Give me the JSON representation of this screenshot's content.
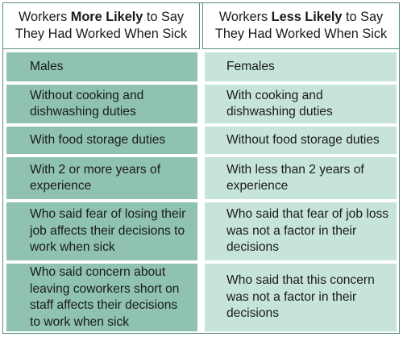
{
  "headers": {
    "left": {
      "before": "Workers ",
      "emphasis": "More Likely",
      "after": " to Say",
      "line2": "They Had Worked When Sick"
    },
    "right": {
      "before": "Workers ",
      "emphasis": "Less Likely",
      "after": " to Say",
      "line2": "They Had Worked When Sick"
    }
  },
  "rows": [
    {
      "left": "Males",
      "right": "Females"
    },
    {
      "left": "Without cooking and dishwashing duties",
      "right": "With cooking and dishwashing duties"
    },
    {
      "left": "With food storage duties",
      "right": "Without food storage duties"
    },
    {
      "left": "With 2 or more years of experience",
      "right": "With less than 2 years of experience"
    },
    {
      "left": "Who said fear of losing their job affects their decisions to work when sick",
      "right": "Who said that fear of job loss was not a factor in their decisions"
    },
    {
      "left": "Who said concern about leaving coworkers short on staff affects their decisions to work when sick",
      "right": "Who said that this concern was not a factor in their decisions"
    }
  ],
  "colors": {
    "left_fill": "#8fc2b3",
    "right_fill": "#c6e4da",
    "border": "#5b8f80"
  }
}
